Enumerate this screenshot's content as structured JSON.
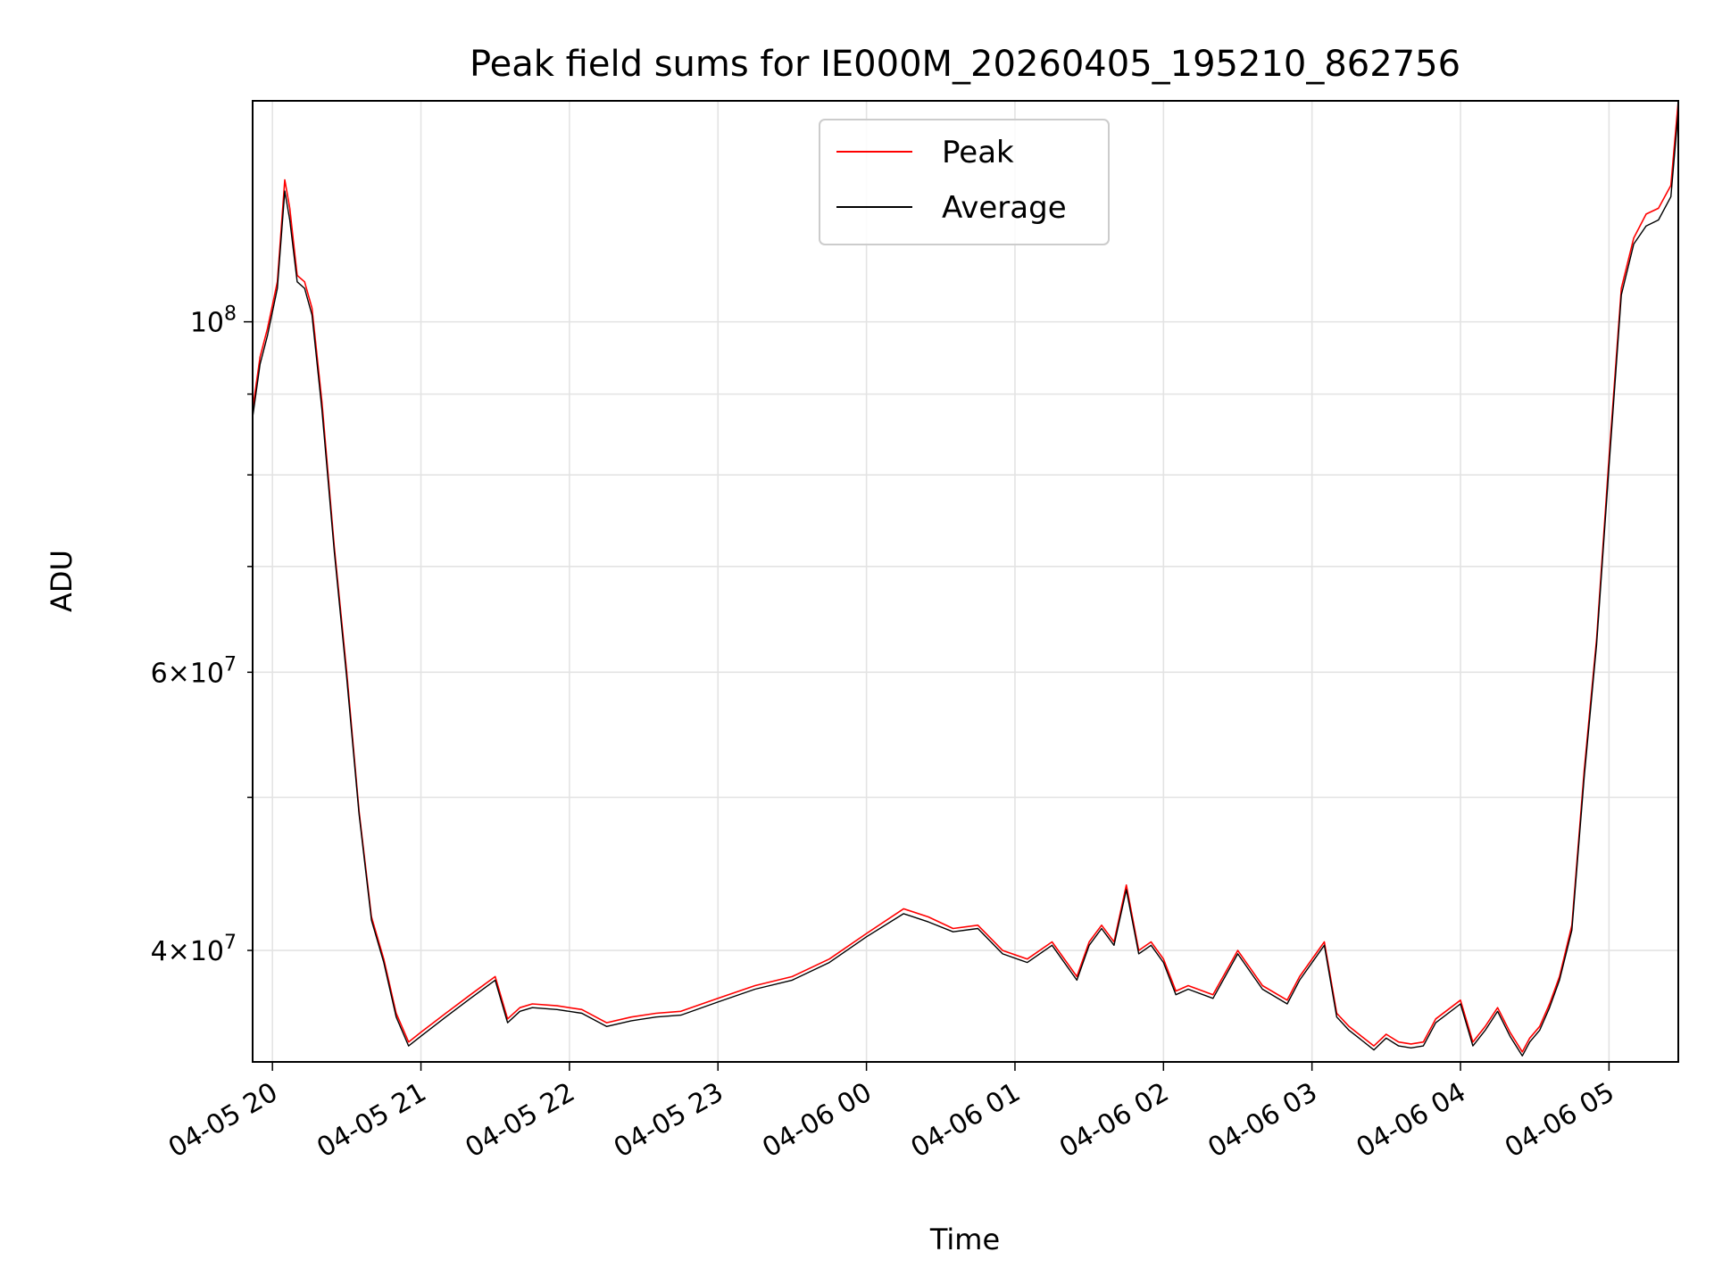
{
  "chart_data": {
    "type": "line",
    "title": "Peak field sums for IE000M_20260405_195210_862756",
    "xlabel": "Time",
    "ylabel": "ADU",
    "yscale": "log",
    "xlim": [
      "04-05 19:52",
      "04-06 05:28"
    ],
    "ylim": [
      34000000,
      138000000
    ],
    "grid": true,
    "legend_position": "upper-center",
    "x_ticks": [
      "04-05 20",
      "04-05 21",
      "04-05 22",
      "04-05 23",
      "04-06 00",
      "04-06 01",
      "04-06 02",
      "04-06 03",
      "04-06 04",
      "04-06 05"
    ],
    "y_ticks_major": [
      {
        "value": 100000000,
        "mantissa": "",
        "exp": "8"
      }
    ],
    "y_ticks_labeled_minor": [
      {
        "value": 40000000,
        "mantissa": "4",
        "exp": "7"
      },
      {
        "value": 60000000,
        "mantissa": "6",
        "exp": "7"
      }
    ],
    "y_ticks_minor_unlabeled": [
      50000000,
      70000000,
      80000000,
      90000000
    ],
    "series": [
      {
        "name": "Peak",
        "color": "#ff0000",
        "x": [
          "04-05 19:52",
          "04-05 19:55",
          "04-05 19:58",
          "04-05 20:02",
          "04-05 20:05",
          "04-05 20:07",
          "04-05 20:10",
          "04-05 20:13",
          "04-05 20:16",
          "04-05 20:20",
          "04-05 20:25",
          "04-05 20:30",
          "04-05 20:35",
          "04-05 20:40",
          "04-05 20:45",
          "04-05 20:50",
          "04-05 20:55",
          "04-05 21:00",
          "04-05 21:10",
          "04-05 21:20",
          "04-05 21:30",
          "04-05 21:35",
          "04-05 21:40",
          "04-05 21:45",
          "04-05 21:55",
          "04-05 22:05",
          "04-05 22:15",
          "04-05 22:25",
          "04-05 22:35",
          "04-05 22:45",
          "04-05 23:00",
          "04-05 23:15",
          "04-05 23:30",
          "04-05 23:45",
          "04-06 00:00",
          "04-06 00:15",
          "04-06 00:25",
          "04-06 00:35",
          "04-06 00:45",
          "04-06 00:55",
          "04-06 01:05",
          "04-06 01:15",
          "04-06 01:25",
          "04-06 01:30",
          "04-06 01:35",
          "04-06 01:40",
          "04-06 01:45",
          "04-06 01:50",
          "04-06 01:55",
          "04-06 02:00",
          "04-06 02:05",
          "04-06 02:10",
          "04-06 02:20",
          "04-06 02:30",
          "04-06 02:40",
          "04-06 02:50",
          "04-06 02:55",
          "04-06 03:05",
          "04-06 03:10",
          "04-06 03:15",
          "04-06 03:20",
          "04-06 03:25",
          "04-06 03:30",
          "04-06 03:35",
          "04-06 03:40",
          "04-06 03:45",
          "04-06 03:50",
          "04-06 04:00",
          "04-06 04:05",
          "04-06 04:10",
          "04-06 04:15",
          "04-06 04:20",
          "04-06 04:25",
          "04-06 04:28",
          "04-06 04:32",
          "04-06 04:36",
          "04-06 04:40",
          "04-06 04:45",
          "04-06 04:50",
          "04-06 04:55",
          "04-06 05:00",
          "04-06 05:05",
          "04-06 05:10",
          "04-06 05:15",
          "04-06 05:20",
          "04-06 05:25",
          "04-06 05:28"
        ],
        "values": [
          88000000,
          95000000,
          99000000,
          106000000,
          123000000,
          118000000,
          107000000,
          106000000,
          102000000,
          89000000,
          72000000,
          60000000,
          49000000,
          42000000,
          39500000,
          36500000,
          35000000,
          35500000,
          36500000,
          37500000,
          38500000,
          36200000,
          36800000,
          37000000,
          36900000,
          36700000,
          36000000,
          36300000,
          36500000,
          36600000,
          37300000,
          38000000,
          38500000,
          39500000,
          41000000,
          42500000,
          42000000,
          41300000,
          41500000,
          40000000,
          39500000,
          40500000,
          38500000,
          40500000,
          41500000,
          40500000,
          44000000,
          40000000,
          40500000,
          39500000,
          37700000,
          38000000,
          37500000,
          40000000,
          38000000,
          37200000,
          38500000,
          40500000,
          36500000,
          35800000,
          35300000,
          34800000,
          35400000,
          35000000,
          34900000,
          35000000,
          36200000,
          37200000,
          35000000,
          35800000,
          36800000,
          35500000,
          34500000,
          35200000,
          35800000,
          37000000,
          38500000,
          41500000,
          52000000,
          63000000,
          82000000,
          105000000,
          113000000,
          117000000,
          118000000,
          122000000,
          138000000
        ]
      },
      {
        "name": "Average",
        "color": "#000000",
        "x": [
          "04-05 19:52",
          "04-05 19:55",
          "04-05 19:58",
          "04-05 20:02",
          "04-05 20:05",
          "04-05 20:07",
          "04-05 20:10",
          "04-05 20:13",
          "04-05 20:16",
          "04-05 20:20",
          "04-05 20:25",
          "04-05 20:30",
          "04-05 20:35",
          "04-05 20:40",
          "04-05 20:45",
          "04-05 20:50",
          "04-05 20:55",
          "04-05 21:00",
          "04-05 21:10",
          "04-05 21:20",
          "04-05 21:30",
          "04-05 21:35",
          "04-05 21:40",
          "04-05 21:45",
          "04-05 21:55",
          "04-05 22:05",
          "04-05 22:15",
          "04-05 22:25",
          "04-05 22:35",
          "04-05 22:45",
          "04-05 23:00",
          "04-05 23:15",
          "04-05 23:30",
          "04-05 23:45",
          "04-06 00:00",
          "04-06 00:15",
          "04-06 00:25",
          "04-06 00:35",
          "04-06 00:45",
          "04-06 00:55",
          "04-06 01:05",
          "04-06 01:15",
          "04-06 01:25",
          "04-06 01:30",
          "04-06 01:35",
          "04-06 01:40",
          "04-06 01:45",
          "04-06 01:50",
          "04-06 01:55",
          "04-06 02:00",
          "04-06 02:05",
          "04-06 02:10",
          "04-06 02:20",
          "04-06 02:30",
          "04-06 02:40",
          "04-06 02:50",
          "04-06 02:55",
          "04-06 03:05",
          "04-06 03:10",
          "04-06 03:15",
          "04-06 03:20",
          "04-06 03:25",
          "04-06 03:30",
          "04-06 03:35",
          "04-06 03:40",
          "04-06 03:45",
          "04-06 03:50",
          "04-06 04:00",
          "04-06 04:05",
          "04-06 04:10",
          "04-06 04:15",
          "04-06 04:20",
          "04-06 04:25",
          "04-06 04:28",
          "04-06 04:32",
          "04-06 04:36",
          "04-06 04:40",
          "04-06 04:45",
          "04-06 04:50",
          "04-06 04:55",
          "04-06 05:00",
          "04-06 05:05",
          "04-06 05:10",
          "04-06 05:15",
          "04-06 05:20",
          "04-06 05:25",
          "04-06 05:28"
        ],
        "values": [
          87000000,
          94000000,
          98000000,
          105000000,
          121000000,
          116000000,
          106000000,
          105000000,
          101000000,
          88000000,
          71500000,
          59500000,
          48800000,
          41800000,
          39300000,
          36300000,
          34800000,
          35300000,
          36300000,
          37300000,
          38300000,
          36000000,
          36600000,
          36800000,
          36700000,
          36500000,
          35800000,
          36100000,
          36300000,
          36400000,
          37100000,
          37800000,
          38300000,
          39300000,
          40800000,
          42200000,
          41700000,
          41100000,
          41300000,
          39800000,
          39300000,
          40300000,
          38300000,
          40300000,
          41300000,
          40300000,
          43700000,
          39800000,
          40300000,
          39300000,
          37500000,
          37800000,
          37300000,
          39800000,
          37800000,
          37000000,
          38300000,
          40300000,
          36300000,
          35600000,
          35100000,
          34600000,
          35200000,
          34800000,
          34700000,
          34800000,
          36000000,
          37000000,
          34800000,
          35600000,
          36600000,
          35300000,
          34300000,
          35000000,
          35600000,
          36800000,
          38300000,
          41200000,
          51500000,
          62500000,
          81000000,
          104000000,
          112000000,
          115000000,
          116000000,
          120000000,
          136000000
        ]
      }
    ]
  }
}
